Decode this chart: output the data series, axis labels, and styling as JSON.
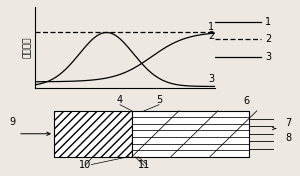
{
  "bg_color": "#ede9e2",
  "top_panel": {
    "ylabel": "沉积温度",
    "ylabel_fontsize": 6.5,
    "x_range": [
      0,
      10
    ],
    "y_range": [
      0,
      1.05
    ],
    "label_fontsize": 7
  },
  "bottom_panel": {
    "label_fontsize": 7
  }
}
